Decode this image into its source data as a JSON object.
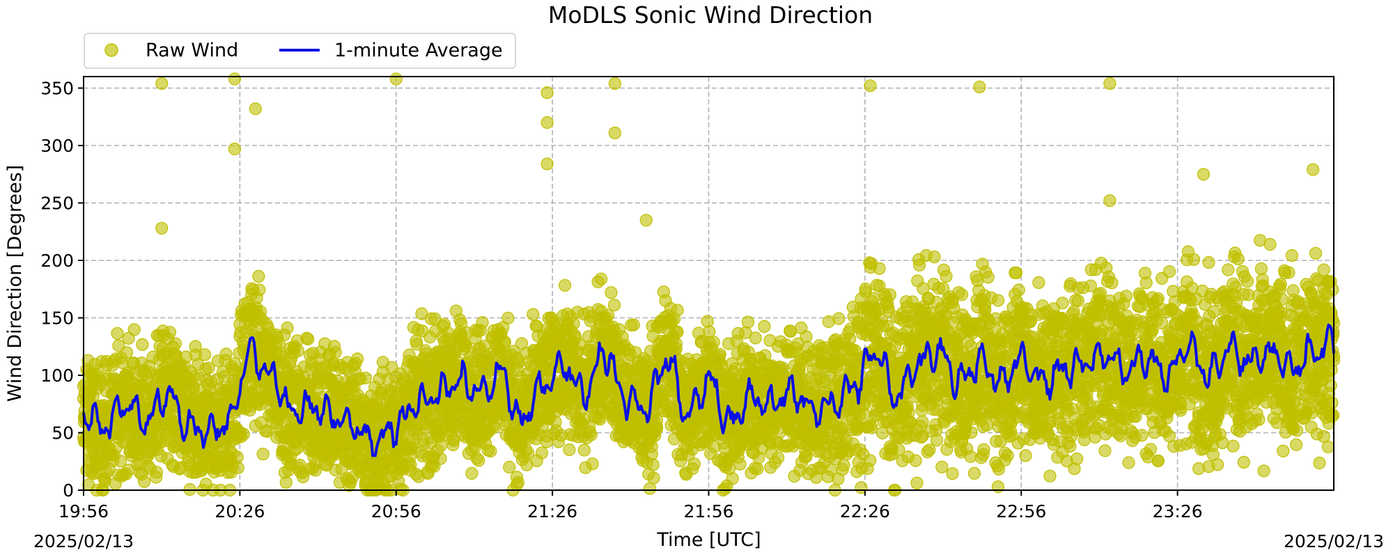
{
  "chart_data": {
    "type": "scatter",
    "title": "MoDLS Sonic Wind Direction",
    "xlabel": "Time [UTC]",
    "ylabel": "Wind Direction [Degrees]",
    "date_start": "2025/02/13",
    "date_end": "2025/02/13",
    "x_range": [
      "19:56",
      "23:56"
    ],
    "ylim": [
      0,
      360
    ],
    "x_ticks": [
      "19:56",
      "20:26",
      "20:56",
      "21:26",
      "21:56",
      "22:26",
      "22:56",
      "23:26"
    ],
    "y_ticks": [
      0,
      50,
      100,
      150,
      200,
      250,
      300,
      350
    ],
    "grid": true,
    "legend_position": "top-left, above plot",
    "colors": {
      "raw": "#bfbf00",
      "average": "#0a10e6"
    },
    "series": [
      {
        "name": "1-minute Average",
        "style": "line",
        "x": [
          "19:56",
          "20:00",
          "20:04",
          "20:08",
          "20:12",
          "20:16",
          "20:20",
          "20:24",
          "20:28",
          "20:32",
          "20:36",
          "20:40",
          "20:44",
          "20:48",
          "20:52",
          "20:56",
          "21:00",
          "21:04",
          "21:08",
          "21:12",
          "21:16",
          "21:20",
          "21:24",
          "21:28",
          "21:32",
          "21:36",
          "21:40",
          "21:44",
          "21:48",
          "21:52",
          "21:56",
          "22:00",
          "22:04",
          "22:08",
          "22:12",
          "22:16",
          "22:20",
          "22:24",
          "22:28",
          "22:32",
          "22:36",
          "22:40",
          "22:44",
          "22:48",
          "22:52",
          "22:56",
          "23:00",
          "23:04",
          "23:08",
          "23:12",
          "23:16",
          "23:20",
          "23:24",
          "23:28",
          "23:32",
          "23:36",
          "23:40",
          "23:44",
          "23:48",
          "23:52",
          "23:56"
        ],
        "values": [
          65,
          55,
          75,
          60,
          85,
          55,
          50,
          60,
          120,
          100,
          70,
          72,
          65,
          55,
          40,
          55,
          75,
          85,
          95,
          85,
          100,
          60,
          90,
          110,
          85,
          120,
          80,
          70,
          115,
          65,
          95,
          60,
          80,
          75,
          85,
          70,
          75,
          90,
          120,
          80,
          110,
          120,
          95,
          110,
          95,
          115,
          95,
          105,
          110,
          120,
          105,
          115,
          100,
          125,
          100,
          125,
          110,
          120,
          105,
          120,
          130
        ]
      },
      {
        "name": "Raw Wind",
        "style": "scatter",
        "note_outliers": [
          {
            "x": "20:11",
            "y": 354
          },
          {
            "x": "20:11",
            "y": 228
          },
          {
            "x": "20:25",
            "y": 358
          },
          {
            "x": "20:25",
            "y": 297
          },
          {
            "x": "20:29",
            "y": 332
          },
          {
            "x": "20:56",
            "y": 358
          },
          {
            "x": "21:25",
            "y": 346
          },
          {
            "x": "21:25",
            "y": 320
          },
          {
            "x": "21:25",
            "y": 284
          },
          {
            "x": "21:38",
            "y": 354
          },
          {
            "x": "21:38",
            "y": 311
          },
          {
            "x": "21:44",
            "y": 235
          },
          {
            "x": "22:27",
            "y": 352
          },
          {
            "x": "22:48",
            "y": 351
          },
          {
            "x": "23:13",
            "y": 354
          },
          {
            "x": "23:13",
            "y": 252
          },
          {
            "x": "23:31",
            "y": 275
          },
          {
            "x": "23:52",
            "y": 279
          }
        ]
      }
    ]
  }
}
